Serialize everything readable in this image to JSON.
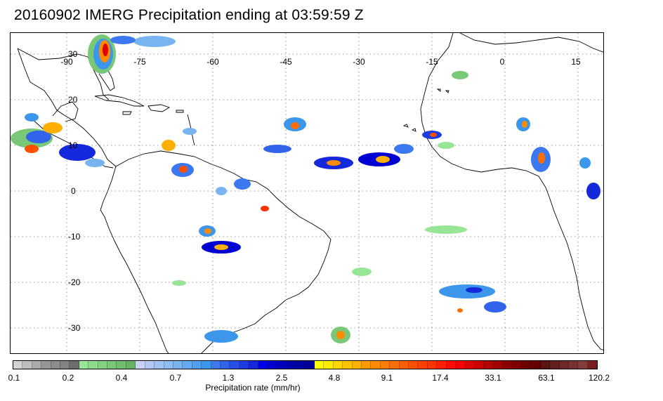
{
  "title": "20160902 IMERG Precipitation ending at 03:59:59 Z",
  "map": {
    "longitude_labels": [
      "-90",
      "-75",
      "-60",
      "-45",
      "-30",
      "-15",
      "0",
      "15"
    ],
    "latitude_labels": [
      "30",
      "20",
      "10",
      "0",
      "-10",
      "-20",
      "-30"
    ],
    "grid_style": "dotted",
    "region": "Tropical Atlantic, Caribbean, South America, West Africa"
  },
  "colorbar": {
    "label": "Precipitation rate (mm/hr)",
    "tick_labels": [
      "0.1",
      "0.2",
      "0.4",
      "0.7",
      "1.3",
      "2.5",
      "4.8",
      "9.1",
      "17.4",
      "33.1",
      "63.1",
      "120.2"
    ],
    "colors": [
      "#d2d2d2",
      "#bebebe",
      "#aaaaaa",
      "#969696",
      "#8c8c8c",
      "#828282",
      "#6e6e6e",
      "#96e696",
      "#8cdc8c",
      "#82d282",
      "#78c878",
      "#6ebe6e",
      "#64b464",
      "#c8d2fa",
      "#b4c8f5",
      "#a0c3f5",
      "#8cbef5",
      "#78b4f0",
      "#64aaf0",
      "#50a0f0",
      "#3c96eb",
      "#3c78f0",
      "#3264eb",
      "#2850e6",
      "#1e3ce1",
      "#1428dc",
      "#0000e6",
      "#0000d2",
      "#0000be",
      "#0000aa",
      "#0000a0",
      "#000096",
      "#ffff00",
      "#ffeb00",
      "#ffd700",
      "#ffc300",
      "#ffaf00",
      "#ff9b00",
      "#ff8c00",
      "#ff7d00",
      "#ff6e00",
      "#ff5f00",
      "#ff5000",
      "#ff4100",
      "#ff3200",
      "#ff1e00",
      "#ff0a00",
      "#f00000",
      "#dc0000",
      "#c80000",
      "#b40000",
      "#a00000",
      "#8c0000",
      "#7d0000",
      "#6e0000",
      "#640000",
      "#5a1414",
      "#641e1e",
      "#6e2828",
      "#783232",
      "#823c3c",
      "#7a2020"
    ]
  }
}
